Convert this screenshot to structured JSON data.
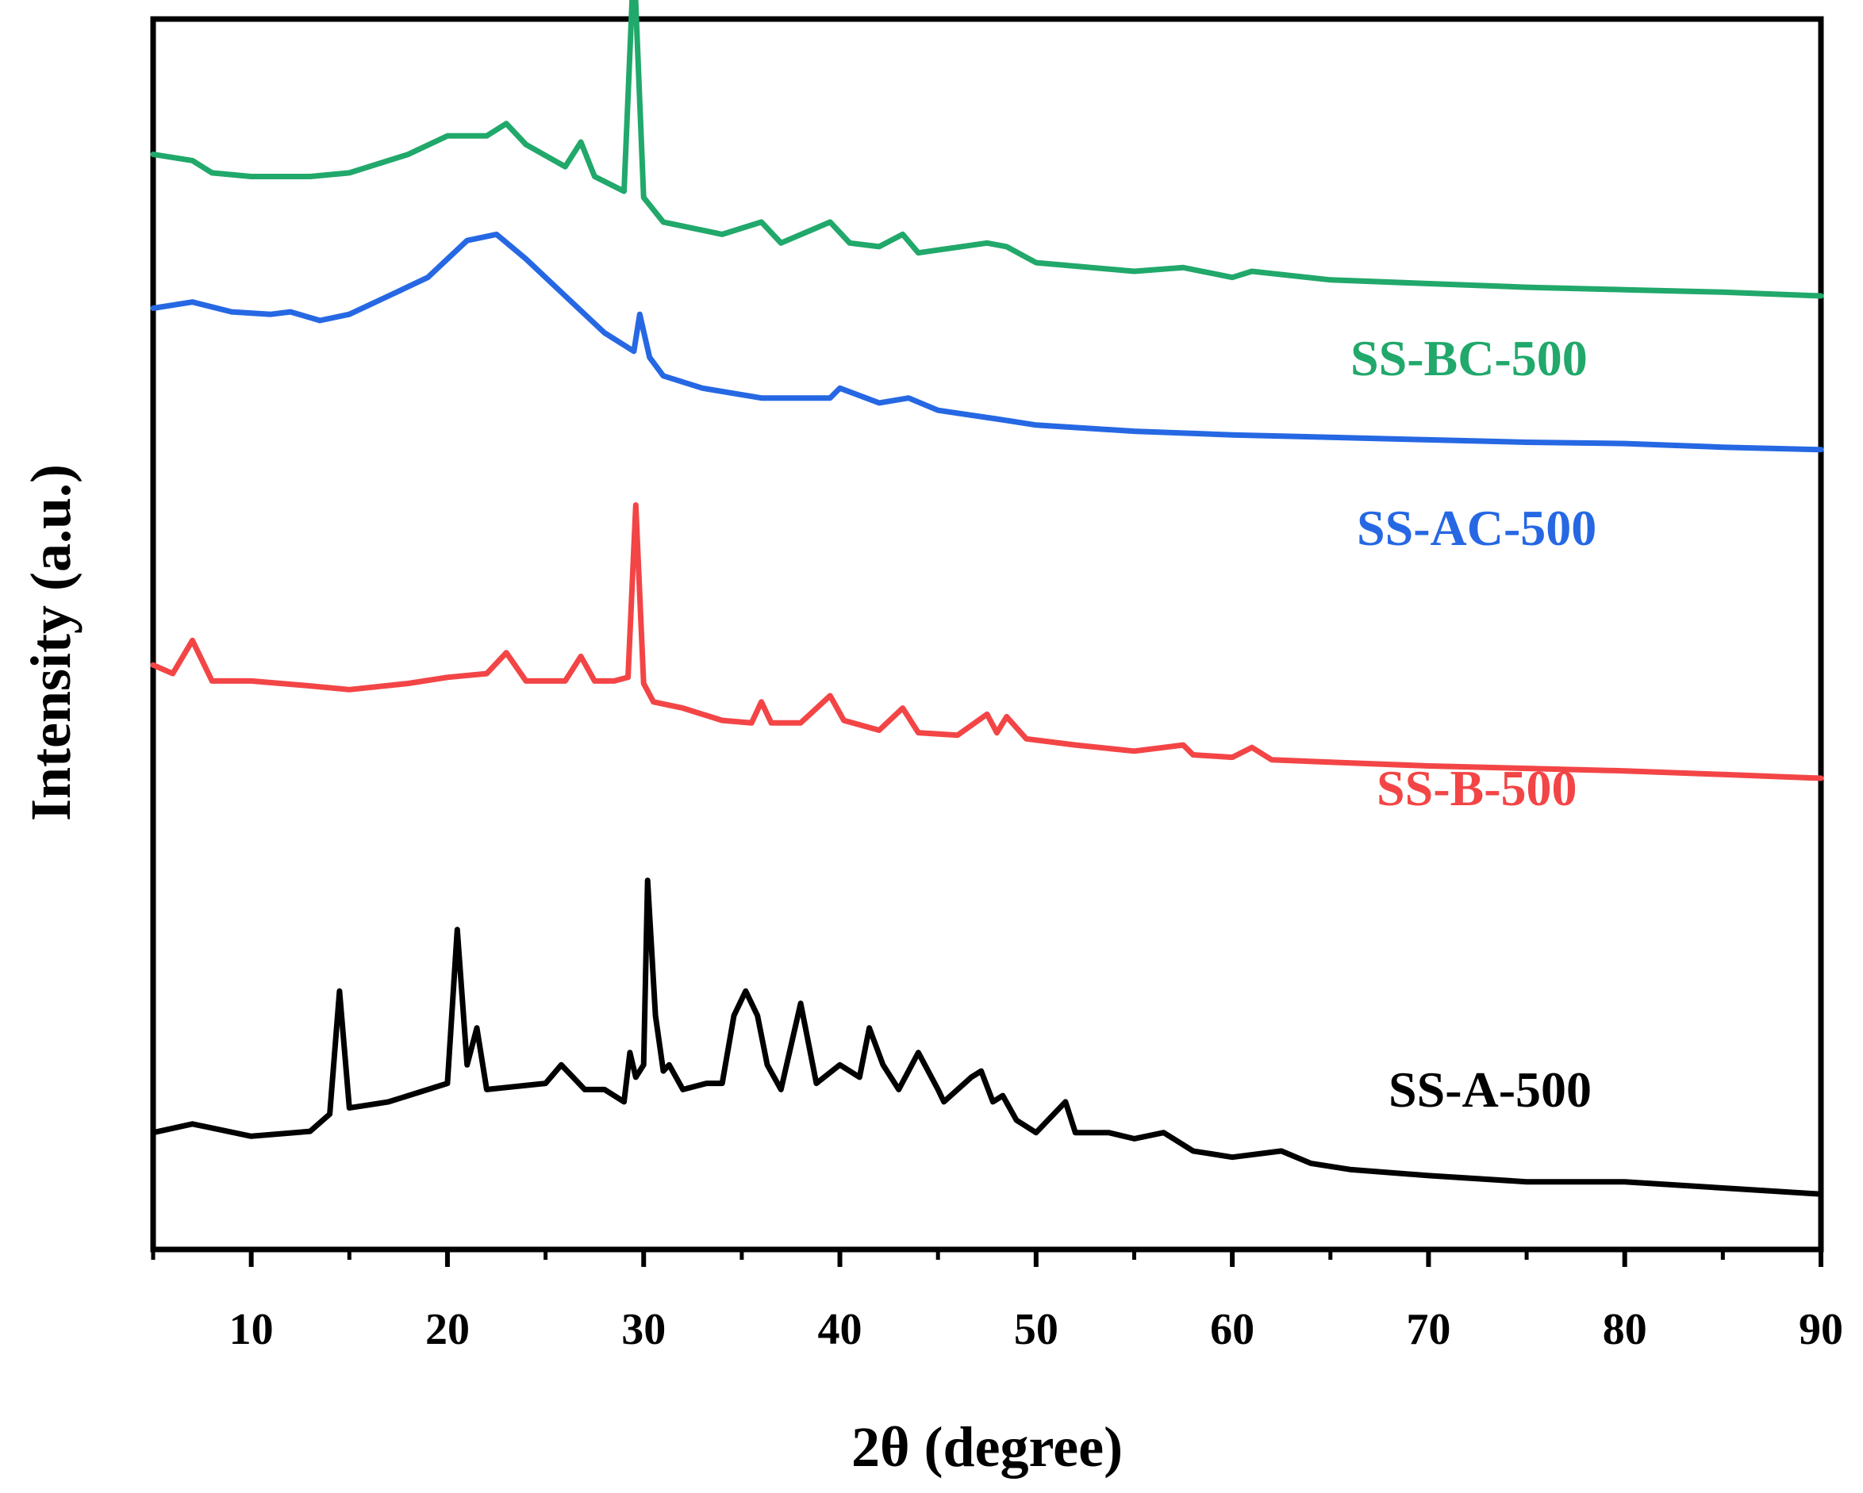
{
  "chart_data": {
    "type": "line",
    "title": "",
    "xlabel": "2θ (degree)",
    "ylabel": "Intensity (a.u.)",
    "xlim": [
      5,
      90
    ],
    "ylim": [
      0,
      10
    ],
    "xticks": [
      10,
      20,
      30,
      40,
      50,
      60,
      70,
      80,
      90
    ],
    "yticks_shown": false,
    "grid": false,
    "legend": "inline labels at right of each series",
    "series": [
      {
        "name": "SS-A-500",
        "color": "#000000",
        "x": [
          5,
          7,
          10,
          13,
          14,
          14.5,
          15,
          17,
          20,
          20.5,
          21,
          21.5,
          22,
          25,
          25.8,
          27,
          28,
          29,
          29.3,
          29.6,
          30,
          30.2,
          30.6,
          31,
          31.3,
          32,
          33.2,
          34,
          34.6,
          35.2,
          35.8,
          36.3,
          37,
          38,
          38.8,
          40,
          41,
          41.5,
          42.2,
          43,
          44,
          45,
          45.3,
          46,
          46.7,
          47.2,
          47.8,
          48.3,
          49,
          50,
          51.5,
          52,
          53.7,
          55,
          56.5,
          58,
          60,
          62.5,
          64,
          66,
          70,
          75,
          80,
          85,
          90
        ],
        "y": [
          0.95,
          1.02,
          0.92,
          0.96,
          1.1,
          2.1,
          1.15,
          1.2,
          1.35,
          2.6,
          1.5,
          1.8,
          1.3,
          1.35,
          1.5,
          1.3,
          1.3,
          1.2,
          1.6,
          1.4,
          1.5,
          3.0,
          1.9,
          1.45,
          1.5,
          1.3,
          1.35,
          1.35,
          1.9,
          2.1,
          1.9,
          1.5,
          1.3,
          2.0,
          1.35,
          1.5,
          1.4,
          1.8,
          1.5,
          1.3,
          1.6,
          1.3,
          1.2,
          1.3,
          1.4,
          1.45,
          1.2,
          1.25,
          1.05,
          0.95,
          1.2,
          0.95,
          0.95,
          0.9,
          0.95,
          0.8,
          0.75,
          0.8,
          0.7,
          0.65,
          0.6,
          0.55,
          0.55,
          0.5,
          0.45
        ]
      },
      {
        "name": "SS-B-500",
        "color": "#f34546",
        "x": [
          5,
          6,
          7,
          8,
          10,
          13,
          15,
          18,
          20,
          22,
          23,
          24,
          26,
          26.8,
          27.5,
          28.5,
          29.2,
          29.6,
          30,
          30.5,
          32,
          34,
          35.5,
          36,
          36.5,
          38,
          39.5,
          40.2,
          42,
          43.2,
          44,
          46,
          47.5,
          48,
          48.5,
          49.5,
          52,
          55,
          57.5,
          58,
          60,
          61,
          62,
          65,
          70,
          75,
          80,
          85,
          90
        ],
        "y": [
          4.75,
          4.68,
          4.95,
          4.62,
          4.62,
          4.58,
          4.55,
          4.6,
          4.65,
          4.68,
          4.85,
          4.62,
          4.62,
          4.82,
          4.62,
          4.62,
          4.65,
          6.05,
          4.6,
          4.45,
          4.4,
          4.3,
          4.28,
          4.45,
          4.28,
          4.28,
          4.5,
          4.3,
          4.22,
          4.4,
          4.2,
          4.18,
          4.35,
          4.2,
          4.33,
          4.15,
          4.1,
          4.05,
          4.1,
          4.02,
          4.0,
          4.08,
          3.98,
          3.96,
          3.93,
          3.91,
          3.89,
          3.86,
          3.83
        ]
      },
      {
        "name": "SS-AC-500",
        "color": "#2668e3",
        "x": [
          5,
          7,
          9,
          11,
          12,
          13.5,
          15,
          17,
          19,
          21,
          22.5,
          24,
          26,
          28,
          29.5,
          29.8,
          30.3,
          31,
          33,
          36,
          39.5,
          40,
          42,
          43.5,
          45,
          48,
          50,
          55,
          60,
          65,
          70,
          75,
          80,
          85,
          90
        ],
        "y": [
          7.65,
          7.7,
          7.62,
          7.6,
          7.62,
          7.55,
          7.6,
          7.75,
          7.9,
          8.2,
          8.25,
          8.05,
          7.75,
          7.45,
          7.3,
          7.6,
          7.25,
          7.1,
          7.0,
          6.92,
          6.92,
          7.0,
          6.88,
          6.92,
          6.82,
          6.75,
          6.7,
          6.65,
          6.62,
          6.6,
          6.58,
          6.56,
          6.55,
          6.52,
          6.5
        ]
      },
      {
        "name": "SS-BC-500",
        "color": "#21a86b",
        "x": [
          5,
          7,
          8,
          10,
          13,
          15,
          18,
          20,
          22,
          23,
          24,
          26,
          26.8,
          27.5,
          29,
          29.5,
          30,
          31,
          34,
          36,
          37,
          39.5,
          40.5,
          42,
          43.2,
          44,
          47.5,
          48.5,
          50,
          55,
          57.5,
          60,
          61,
          65,
          70,
          75,
          80,
          85,
          90
        ],
        "y": [
          8.9,
          8.85,
          8.75,
          8.72,
          8.72,
          8.75,
          8.9,
          9.05,
          9.05,
          9.15,
          8.98,
          8.8,
          9.0,
          8.72,
          8.6,
          10.5,
          8.55,
          8.35,
          8.25,
          8.35,
          8.18,
          8.35,
          8.18,
          8.15,
          8.25,
          8.1,
          8.18,
          8.15,
          8.02,
          7.95,
          7.98,
          7.9,
          7.95,
          7.88,
          7.85,
          7.82,
          7.8,
          7.78,
          7.75
        ]
      }
    ]
  }
}
